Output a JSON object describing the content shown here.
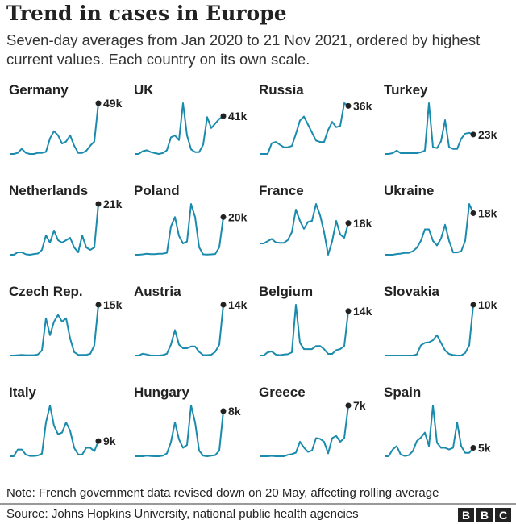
{
  "title": "Trend in cases in Europe",
  "subtitle": "Seven-day averages from Jan 2020 to 21 Nov 2021, ordered by highest current values. Each country on its own scale.",
  "note": "Note: French government data revised down on 20 May, affecting rolling average",
  "source": "Source: Johns Hopkins University, national public health agencies",
  "logo": [
    "B",
    "B",
    "C"
  ],
  "chart_data": {
    "type": "line",
    "x_range": [
      "Jan 2020",
      "21 Nov 2021"
    ],
    "unit": "thousand cases (7-day average)",
    "line_color": "#1b8bad",
    "dot_color": "#222",
    "panels": [
      {
        "name": "Germany",
        "label": "49k",
        "values": [
          0,
          0,
          1,
          5,
          1,
          0,
          0,
          1,
          1,
          2,
          15,
          22,
          18,
          10,
          12,
          18,
          8,
          1,
          1,
          3,
          8,
          12,
          49
        ]
      },
      {
        "name": "UK",
        "label": "41k",
        "values": [
          0,
          0,
          3,
          4,
          2,
          1,
          0,
          1,
          4,
          18,
          20,
          15,
          55,
          20,
          5,
          2,
          2,
          10,
          40,
          28,
          33,
          38,
          41
        ]
      },
      {
        "name": "Russia",
        "label": "36k",
        "values": [
          0,
          0,
          0,
          8,
          9,
          7,
          5,
          5,
          6,
          15,
          25,
          28,
          22,
          16,
          10,
          9,
          9,
          18,
          24,
          20,
          21,
          38,
          36
        ]
      },
      {
        "name": "Turkey",
        "label": "23k",
        "values": [
          0,
          0,
          1,
          4,
          1,
          1,
          1,
          1,
          1,
          2,
          4,
          60,
          8,
          7,
          15,
          40,
          8,
          6,
          6,
          18,
          24,
          25,
          23
        ]
      },
      {
        "name": "Netherlands",
        "label": "21k",
        "values": [
          0,
          0,
          1,
          1,
          0.2,
          0,
          0.3,
          0.5,
          2,
          8,
          5,
          10,
          6,
          5,
          6,
          7,
          3,
          1,
          8,
          3,
          2,
          3,
          21
        ]
      },
      {
        "name": "Poland",
        "label": "20k",
        "values": [
          0,
          0,
          0.2,
          0.5,
          0.3,
          0.3,
          0.5,
          0.6,
          1,
          15,
          20,
          10,
          6,
          7,
          27,
          20,
          4,
          0.2,
          0.1,
          0.2,
          0.4,
          4,
          20
        ]
      },
      {
        "name": "France",
        "label": "18k",
        "values": [
          0,
          0,
          2,
          4,
          1,
          0.5,
          0.5,
          3,
          10,
          30,
          20,
          13,
          19,
          20,
          35,
          25,
          10,
          -10,
          2,
          20,
          8,
          5,
          18
        ]
      },
      {
        "name": "Ukraine",
        "label": "18k",
        "values": [
          0,
          0,
          0,
          0.3,
          0.5,
          0.8,
          0.8,
          1.5,
          3,
          6,
          11,
          11,
          6,
          4,
          7,
          13,
          6,
          1,
          1,
          1.5,
          6,
          22,
          18
        ]
      },
      {
        "name": "Czech Rep.",
        "label": "15k",
        "values": [
          0,
          0,
          0.1,
          0.2,
          0.1,
          0.1,
          0.1,
          0.3,
          1.5,
          11,
          6,
          10,
          12,
          10,
          11,
          5,
          1,
          0.2,
          0.2,
          0.2,
          0.5,
          3,
          15
        ]
      },
      {
        "name": "Austria",
        "label": "14k",
        "values": [
          0,
          0,
          0.5,
          0.3,
          0,
          0,
          0,
          0.1,
          0.5,
          3,
          7,
          3,
          2,
          2,
          2.5,
          2.5,
          1,
          0.1,
          0.1,
          0.2,
          1,
          3,
          14
        ]
      },
      {
        "name": "Belgium",
        "label": "14k",
        "values": [
          0,
          0,
          1,
          1.3,
          0.3,
          0.1,
          0.3,
          0.4,
          1,
          16,
          4,
          2,
          2,
          2,
          3,
          3,
          2,
          0.5,
          0.5,
          1.7,
          2,
          3,
          14
        ]
      },
      {
        "name": "Slovakia",
        "label": "10k",
        "values": [
          0,
          0,
          0,
          0,
          0,
          0,
          0,
          0,
          0.2,
          2,
          2.5,
          2.6,
          3,
          4,
          2.5,
          1,
          0.3,
          0.1,
          0,
          0,
          0.5,
          2,
          10
        ]
      },
      {
        "name": "Italy",
        "label": "9k",
        "values": [
          0,
          0,
          4,
          4,
          1,
          0.2,
          0.2,
          0.5,
          1.5,
          20,
          30,
          18,
          13,
          14,
          20,
          15,
          5,
          1,
          1,
          5,
          5,
          3,
          9
        ]
      },
      {
        "name": "Hungary",
        "label": "8k",
        "values": [
          0,
          0,
          0,
          0.1,
          0.05,
          0,
          0,
          0.1,
          0.5,
          2.5,
          6,
          3,
          1.5,
          2,
          9,
          6,
          1,
          0.1,
          0,
          0.1,
          0.2,
          1,
          8
        ]
      },
      {
        "name": "Greece",
        "label": "7k",
        "values": [
          0,
          0,
          0,
          0.05,
          0,
          0,
          0,
          0.2,
          0.3,
          0.5,
          2,
          1.2,
          0.6,
          0.8,
          2.5,
          2.4,
          2,
          0.4,
          2.5,
          2.8,
          2,
          2.5,
          7
        ]
      },
      {
        "name": "Spain",
        "label": "5k",
        "values": [
          0,
          0,
          4,
          6,
          1,
          0.2,
          0.6,
          3,
          9,
          11,
          14,
          6,
          30,
          8,
          5,
          5,
          4,
          5,
          20,
          6,
          2,
          2,
          5
        ]
      }
    ]
  }
}
